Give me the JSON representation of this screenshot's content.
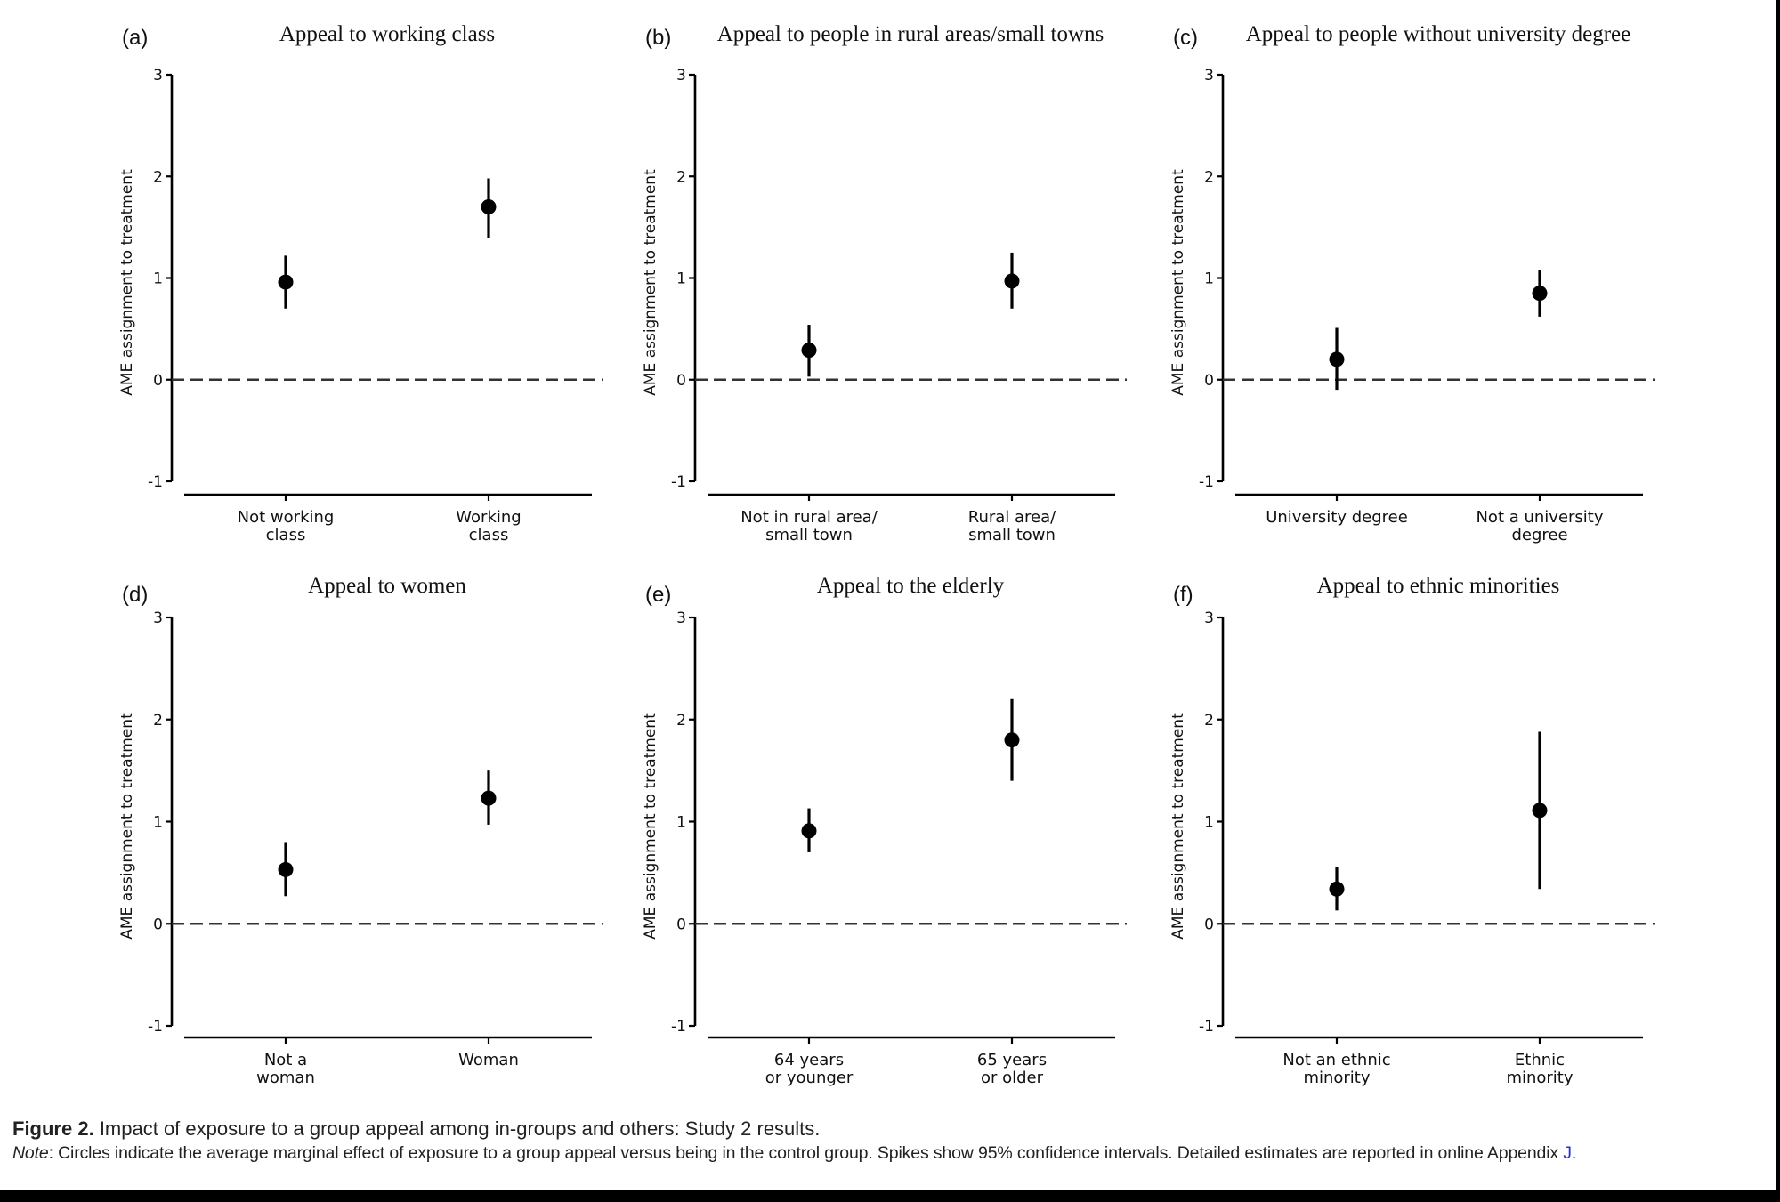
{
  "figure": {
    "caption_label": "Figure 2.",
    "caption_title": "Impact of exposure to a group appeal among in-groups and others: Study 2 results.",
    "note_label": "Note",
    "note_text": ": Circles indicate the average marginal effect of exposure to a group appeal versus being in the control group. Spikes show 95% confidence intervals. Detailed estimates are reported in online Appendix ",
    "note_link": "J",
    "note_end": "."
  },
  "colors": {
    "marker": "#000000",
    "axis": "#000000",
    "reference_line": "#333333",
    "link": "#2a2ae0"
  },
  "chart_data": [
    {
      "type": "scatter",
      "panel": "(a)",
      "title": "Appeal to working class",
      "xlabel": "",
      "ylabel": "AME assignment to treatment",
      "ylim": [
        -1,
        3
      ],
      "yticks": [
        3,
        2,
        1,
        0,
        -1
      ],
      "reference_line": 0,
      "categories": [
        [
          "Not working",
          "class"
        ],
        [
          "Working",
          "class"
        ]
      ],
      "estimates": [
        0.96,
        1.7
      ],
      "ci_low": [
        0.7,
        1.39
      ],
      "ci_high": [
        1.22,
        1.98
      ]
    },
    {
      "type": "scatter",
      "panel": "(b)",
      "title": "Appeal to people in rural areas/small towns",
      "xlabel": "",
      "ylabel": "AME assignment to treatment",
      "ylim": [
        -1,
        3
      ],
      "yticks": [
        3,
        2,
        1,
        0,
        -1
      ],
      "reference_line": 0,
      "categories": [
        [
          "Not in rural area/",
          "small town"
        ],
        [
          "Rural area/",
          "small town"
        ]
      ],
      "estimates": [
        0.29,
        0.97
      ],
      "ci_low": [
        0.03,
        0.7
      ],
      "ci_high": [
        0.54,
        1.25
      ]
    },
    {
      "type": "scatter",
      "panel": "(c)",
      "title": "Appeal to people without university degree",
      "xlabel": "",
      "ylabel": "AME assignment to treatment",
      "ylim": [
        -1,
        3
      ],
      "yticks": [
        3,
        2,
        1,
        0,
        -1
      ],
      "reference_line": 0,
      "categories": [
        [
          "University degree"
        ],
        [
          "Not a university",
          "degree"
        ]
      ],
      "estimates": [
        0.2,
        0.85
      ],
      "ci_low": [
        -0.1,
        0.62
      ],
      "ci_high": [
        0.51,
        1.08
      ]
    },
    {
      "type": "scatter",
      "panel": "(d)",
      "title": "Appeal to women",
      "xlabel": "",
      "ylabel": "AME assignment to treatment",
      "ylim": [
        -1,
        3
      ],
      "yticks": [
        3,
        2,
        1,
        0,
        -1
      ],
      "reference_line": 0,
      "categories": [
        [
          "Not a",
          "woman"
        ],
        [
          "Woman"
        ]
      ],
      "estimates": [
        0.53,
        1.23
      ],
      "ci_low": [
        0.27,
        0.97
      ],
      "ci_high": [
        0.8,
        1.5
      ]
    },
    {
      "type": "scatter",
      "panel": "(e)",
      "title": "Appeal to the elderly",
      "xlabel": "",
      "ylabel": "AME assignment to treatment",
      "ylim": [
        -1,
        3
      ],
      "yticks": [
        3,
        2,
        1,
        0,
        -1
      ],
      "reference_line": 0,
      "categories": [
        [
          "64 years",
          "or younger"
        ],
        [
          "65 years",
          "or older"
        ]
      ],
      "estimates": [
        0.91,
        1.8
      ],
      "ci_low": [
        0.7,
        1.4
      ],
      "ci_high": [
        1.13,
        2.2
      ]
    },
    {
      "type": "scatter",
      "panel": "(f)",
      "title": "Appeal to ethnic minorities",
      "xlabel": "",
      "ylabel": "AME assignment to treatment",
      "ylim": [
        -1,
        3
      ],
      "yticks": [
        3,
        2,
        1,
        0,
        -1
      ],
      "reference_line": 0,
      "categories": [
        [
          "Not an ethnic",
          "minority"
        ],
        [
          "Ethnic",
          "minority"
        ]
      ],
      "estimates": [
        0.34,
        1.11
      ],
      "ci_low": [
        0.13,
        0.34
      ],
      "ci_high": [
        0.56,
        1.88
      ]
    }
  ]
}
